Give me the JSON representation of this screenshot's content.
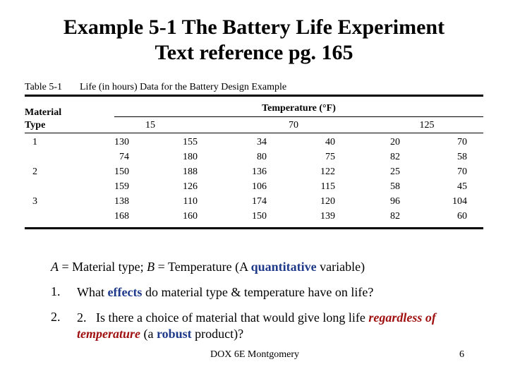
{
  "title": [
    "Example 5-1 The Battery Life Experiment",
    "Text reference pg. 165"
  ],
  "table": {
    "caption": [
      "Table 5-1",
      "Life (in hours) Data for the Battery Design Example"
    ],
    "material_header": [
      "Material",
      "Type"
    ],
    "temperature_header": "Temperature (°F)",
    "temperatures": [
      "15",
      "70",
      "125"
    ],
    "rows": [
      {
        "material": "1",
        "values": [
          [
            "130",
            "155",
            "34",
            "40",
            "20",
            "70"
          ],
          [
            "74",
            "180",
            "80",
            "75",
            "82",
            "58"
          ]
        ]
      },
      {
        "material": "2",
        "values": [
          [
            "150",
            "188",
            "136",
            "122",
            "25",
            "70"
          ],
          [
            "159",
            "126",
            "106",
            "115",
            "58",
            "45"
          ]
        ]
      },
      {
        "material": "3",
        "values": [
          [
            "138",
            "110",
            "174",
            "120",
            "96",
            "104"
          ],
          [
            "168",
            "160",
            "150",
            "139",
            "82",
            "60"
          ]
        ]
      }
    ]
  },
  "intro": [
    "A",
    " = Material type; ",
    "B",
    " = Temperature (A ",
    "quantitative",
    " variable)"
  ],
  "items": [
    {
      "number": "1.",
      "segments": [
        "What ",
        "effects",
        " do material type & temperature have on life?"
      ]
    },
    {
      "number": "2.",
      "segments": [
        "2.   Is there a choice of material that would give long life ",
        "regardless",
        " ",
        "of  temperature",
        " (a ",
        "robust",
        " product)?"
      ]
    }
  ],
  "footer": "DOX 6E Montgomery",
  "page_number": "6"
}
